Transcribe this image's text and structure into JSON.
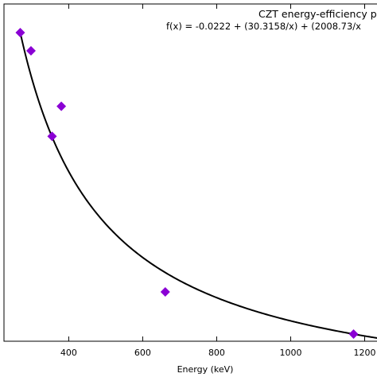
{
  "chart_data": {
    "type": "scatter",
    "title": "CZT energy-efficiency pl",
    "annotation": "f(x) = -0.0222 + (30.3158/x) + (2008.73/x",
    "xlabel": "Energy (keV)",
    "ylabel": "",
    "xlim": [
      225,
      1300
    ],
    "x_ticks": [
      400,
      600,
      800,
      1000,
      1200
    ],
    "x_tick_labels": [
      "400",
      "600",
      "800",
      "1000",
      "1200"
    ],
    "grid": false,
    "marker_color": "#8a00d4",
    "fit_color": "#000000",
    "series": [
      {
        "marker": "diamond",
        "points": [
          {
            "x": 269,
            "y": 0.945
          },
          {
            "x": 298,
            "y": 0.888
          },
          {
            "x": 355,
            "y": 0.62
          },
          {
            "x": 380,
            "y": 0.714
          },
          {
            "x": 661,
            "y": 0.132
          },
          {
            "x": 1170,
            "y": 0.0
          }
        ]
      }
    ],
    "fit_curve": {
      "intercept": -0.0222,
      "c1": 30.3158,
      "c2": 2008.73,
      "x_range": [
        271,
        1300
      ]
    }
  }
}
